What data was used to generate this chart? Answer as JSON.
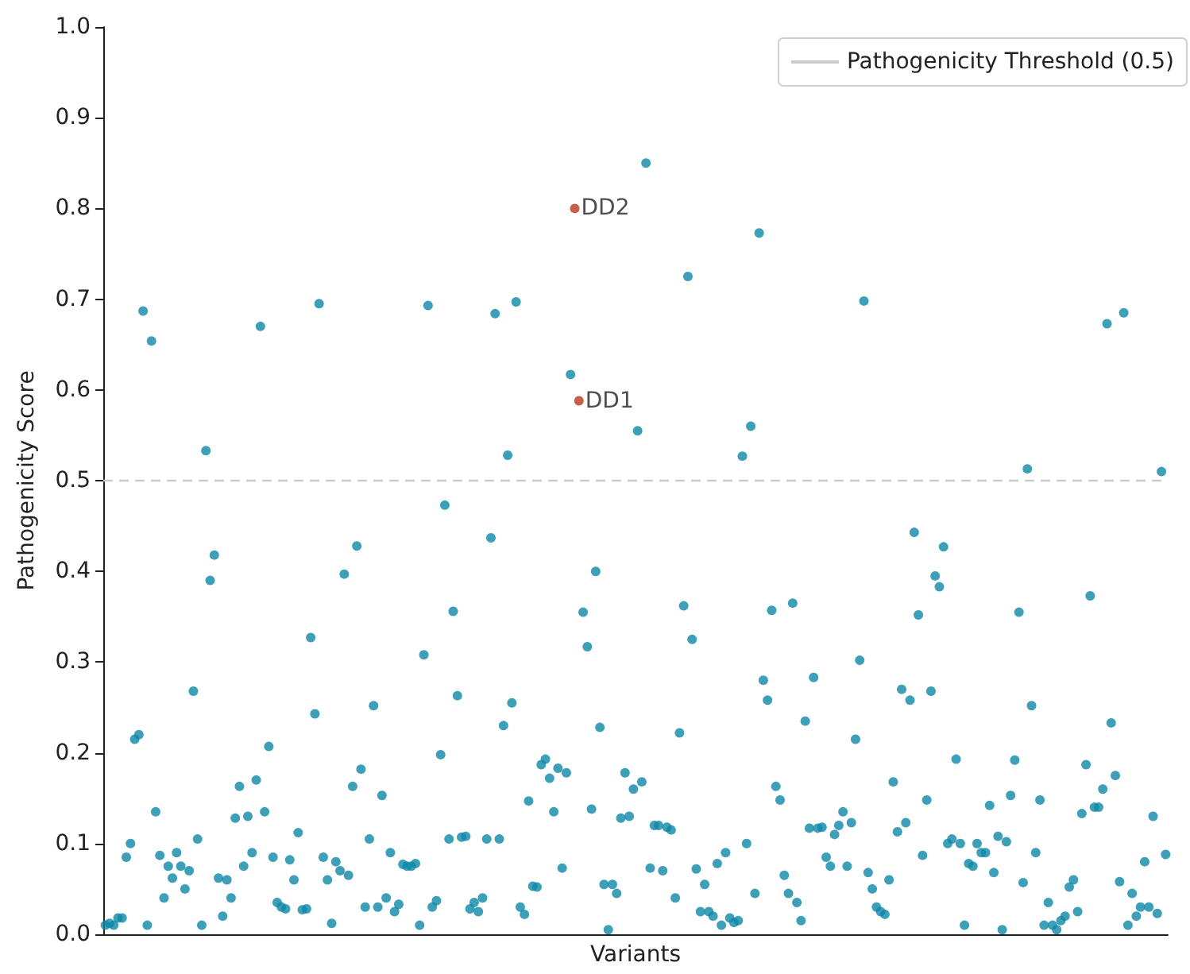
{
  "chart_data": {
    "type": "scatter",
    "xlabel": "Variants",
    "ylabel": "Pathogenicity Score",
    "categories": [
      null,
      null,
      null,
      null,
      null,
      null,
      null,
      null,
      null,
      null,
      null,
      null,
      null,
      null,
      null,
      null,
      null,
      null,
      null,
      null,
      null,
      null,
      null,
      null,
      null,
      null,
      null,
      null,
      null,
      null,
      null,
      null,
      null,
      null,
      null,
      null,
      null,
      null,
      null,
      null,
      null,
      null,
      null,
      null,
      null,
      null,
      null,
      null,
      null,
      null,
      null,
      null,
      null,
      null,
      null,
      null,
      null,
      null,
      null,
      null,
      null,
      null,
      null,
      null,
      null,
      null,
      null,
      null,
      null,
      null,
      null,
      null,
      null,
      null,
      null,
      null,
      null,
      null,
      null,
      null,
      null,
      null,
      null,
      null,
      null,
      null,
      null,
      null,
      null,
      null,
      null,
      null,
      null,
      null,
      null,
      null,
      null,
      null,
      null,
      null,
      null,
      null,
      null,
      null,
      null,
      null,
      null,
      null,
      null,
      null,
      null,
      null,
      null,
      null,
      null,
      null,
      null,
      null,
      null,
      null,
      null,
      null,
      null,
      null,
      null,
      null,
      null,
      null,
      null,
      null,
      null,
      null,
      null,
      null,
      null,
      null,
      null,
      null,
      null,
      null,
      null,
      null,
      null,
      null,
      null,
      null,
      null,
      null,
      null,
      null,
      null,
      null,
      null,
      null,
      null,
      null,
      null,
      null,
      null,
      null,
      null,
      null,
      null,
      null,
      null,
      null,
      null,
      null,
      null,
      null,
      null,
      null,
      null,
      null,
      null,
      null,
      null,
      null,
      null,
      null,
      null,
      null,
      null,
      null,
      null,
      null,
      null,
      null,
      null,
      null,
      null,
      null,
      null,
      null,
      null,
      null,
      null,
      null,
      null,
      null,
      null,
      null,
      null,
      null,
      null,
      null,
      null,
      null,
      null,
      null,
      null,
      null,
      null,
      null,
      null,
      null,
      null,
      null,
      null,
      null,
      null,
      null,
      null,
      null,
      null,
      null,
      null,
      null,
      null,
      null,
      null,
      null,
      null,
      null,
      null,
      null,
      null,
      null,
      null,
      null,
      null,
      null,
      null,
      null,
      null,
      null,
      null,
      null,
      null,
      null,
      null,
      null,
      null,
      null
    ],
    "series": [
      {
        "color": "#0e87a8",
        "values": [
          0.01,
          0.012,
          0.01,
          0.018,
          0.018,
          0.085,
          0.1,
          0.215,
          0.22,
          0.687,
          0.01,
          0.654,
          0.135,
          0.087,
          0.04,
          0.075,
          0.062,
          0.09,
          0.075,
          0.05,
          0.07,
          0.268,
          0.105,
          0.01,
          0.533,
          0.39,
          0.418,
          0.062,
          0.02,
          0.06,
          0.04,
          0.128,
          0.163,
          0.075,
          0.13,
          0.09,
          0.17,
          0.67,
          0.135,
          0.207,
          0.085,
          0.035,
          0.03,
          0.028,
          0.082,
          0.06,
          0.112,
          0.027,
          0.028,
          0.327,
          0.243,
          0.695,
          0.085,
          0.06,
          0.012,
          0.08,
          0.07,
          0.397,
          0.065,
          0.163,
          0.428,
          0.182,
          0.03,
          0.105,
          0.252,
          0.03,
          0.153,
          0.04,
          0.09,
          0.025,
          0.033,
          0.077,
          0.075,
          0.075,
          0.078,
          0.01,
          0.308,
          0.693,
          0.03,
          0.037,
          0.198,
          0.473,
          0.105,
          0.356,
          0.263,
          0.107,
          0.108,
          0.028,
          0.035,
          0.025,
          0.04,
          0.105,
          0.437,
          0.684,
          0.105,
          0.23,
          0.528,
          0.255,
          0.697,
          0.03,
          0.022,
          0.147,
          0.053,
          0.052,
          0.187,
          0.193,
          0.172,
          0.135,
          0.183,
          0.073,
          0.178,
          0.617,
          null,
          null,
          0.355,
          0.317,
          0.138,
          0.4,
          0.228,
          0.055,
          0.005,
          0.055,
          0.045,
          0.128,
          0.178,
          0.13,
          0.16,
          0.555,
          0.168,
          0.85,
          0.073,
          0.12,
          0.12,
          0.07,
          0.118,
          0.115,
          0.04,
          0.222,
          0.362,
          0.725,
          0.325,
          0.072,
          0.025,
          0.055,
          0.025,
          0.02,
          0.078,
          0.01,
          0.09,
          0.018,
          0.013,
          0.015,
          0.527,
          0.1,
          0.56,
          0.045,
          0.773,
          0.28,
          0.258,
          0.357,
          0.163,
          0.148,
          0.065,
          0.045,
          0.365,
          0.035,
          0.015,
          0.235,
          0.117,
          0.283,
          0.117,
          0.118,
          0.085,
          0.075,
          0.11,
          0.12,
          0.135,
          0.075,
          0.123,
          0.215,
          0.302,
          0.698,
          0.068,
          0.05,
          0.03,
          0.025,
          0.022,
          0.06,
          0.168,
          0.113,
          0.27,
          0.123,
          0.258,
          0.443,
          0.352,
          0.087,
          0.148,
          0.268,
          0.395,
          0.383,
          0.427,
          0.1,
          0.105,
          0.193,
          0.1,
          0.01,
          0.078,
          0.075,
          0.1,
          0.09,
          0.09,
          0.142,
          0.068,
          0.108,
          0.005,
          0.102,
          0.153,
          0.192,
          0.355,
          0.057,
          0.513,
          0.252,
          0.09,
          0.148,
          0.01,
          0.035,
          0.01,
          0.005,
          0.015,
          0.02,
          0.052,
          0.06,
          0.025,
          0.133,
          0.187,
          0.373,
          0.14,
          0.14,
          0.16,
          0.673,
          0.233,
          0.175,
          0.058,
          0.685,
          0.01,
          0.045,
          0.02,
          0.03,
          0.08,
          0.03,
          0.13,
          0.023,
          0.51,
          0.088
        ]
      },
      {
        "color": "#b5391a",
        "values": [
          null,
          null,
          null,
          null,
          null,
          null,
          null,
          null,
          null,
          null,
          null,
          null,
          null,
          null,
          null,
          null,
          null,
          null,
          null,
          null,
          null,
          null,
          null,
          null,
          null,
          null,
          null,
          null,
          null,
          null,
          null,
          null,
          null,
          null,
          null,
          null,
          null,
          null,
          null,
          null,
          null,
          null,
          null,
          null,
          null,
          null,
          null,
          null,
          null,
          null,
          null,
          null,
          null,
          null,
          null,
          null,
          null,
          null,
          null,
          null,
          null,
          null,
          null,
          null,
          null,
          null,
          null,
          null,
          null,
          null,
          null,
          null,
          null,
          null,
          null,
          null,
          null,
          null,
          null,
          null,
          null,
          null,
          null,
          null,
          null,
          null,
          null,
          null,
          null,
          null,
          null,
          null,
          null,
          null,
          null,
          null,
          null,
          null,
          null,
          null,
          null,
          null,
          null,
          null,
          null,
          null,
          null,
          null,
          null,
          null,
          null,
          null,
          0.8,
          0.588,
          null,
          null,
          null,
          null,
          null,
          null,
          null,
          null,
          null,
          null,
          null,
          null,
          null,
          null,
          null,
          null,
          null,
          null,
          null,
          null,
          null,
          null,
          null,
          null,
          null,
          null,
          null,
          null,
          null,
          null,
          null,
          null,
          null,
          null,
          null,
          null,
          null,
          null,
          null,
          null,
          null,
          null,
          null,
          null,
          null,
          null,
          null,
          null,
          null,
          null,
          null,
          null,
          null,
          null,
          null,
          null,
          null,
          null,
          null,
          null,
          null,
          null,
          null,
          null,
          null,
          null,
          null,
          null,
          null,
          null,
          null,
          null,
          null,
          null,
          null,
          null,
          null,
          null,
          null,
          null,
          null,
          null,
          null,
          null,
          null,
          null,
          null,
          null,
          null,
          null,
          null,
          null,
          null,
          null,
          null,
          null,
          null,
          null,
          null,
          null,
          null,
          null,
          null,
          null,
          null,
          null,
          null,
          null,
          null,
          null,
          null,
          null,
          null,
          null,
          null,
          null,
          null,
          null,
          null,
          null,
          null,
          null,
          null,
          null,
          null,
          null,
          null,
          null,
          null,
          null,
          null,
          null,
          null,
          null,
          null,
          null,
          null,
          null,
          null,
          null
        ],
        "value_labels": [
          null,
          null,
          null,
          null,
          null,
          null,
          null,
          null,
          null,
          null,
          null,
          null,
          null,
          null,
          null,
          null,
          null,
          null,
          null,
          null,
          null,
          null,
          null,
          null,
          null,
          null,
          null,
          null,
          null,
          null,
          null,
          null,
          null,
          null,
          null,
          null,
          null,
          null,
          null,
          null,
          null,
          null,
          null,
          null,
          null,
          null,
          null,
          null,
          null,
          null,
          null,
          null,
          null,
          null,
          null,
          null,
          null,
          null,
          null,
          null,
          null,
          null,
          null,
          null,
          null,
          null,
          null,
          null,
          null,
          null,
          null,
          null,
          null,
          null,
          null,
          null,
          null,
          null,
          null,
          null,
          null,
          null,
          null,
          null,
          null,
          null,
          null,
          null,
          null,
          null,
          null,
          null,
          null,
          null,
          null,
          null,
          null,
          null,
          null,
          null,
          null,
          null,
          null,
          null,
          null,
          null,
          null,
          null,
          null,
          null,
          null,
          null,
          "DD2",
          "DD1",
          null,
          null,
          null,
          null,
          null,
          null,
          null,
          null,
          null,
          null,
          null,
          null,
          null,
          null,
          null,
          null,
          null,
          null,
          null,
          null,
          null,
          null,
          null,
          null,
          null,
          null,
          null,
          null,
          null,
          null,
          null,
          null,
          null,
          null,
          null,
          null,
          null,
          null,
          null,
          null,
          null,
          null,
          null,
          null,
          null,
          null,
          null,
          null,
          null,
          null,
          null,
          null,
          null,
          null,
          null,
          null,
          null,
          null,
          null,
          null,
          null,
          null,
          null,
          null,
          null,
          null,
          null,
          null,
          null,
          null,
          null,
          null,
          null,
          null,
          null,
          null,
          null,
          null,
          null,
          null,
          null,
          null,
          null,
          null,
          null,
          null,
          null,
          null,
          null,
          null,
          null,
          null,
          null,
          null,
          null,
          null,
          null,
          null,
          null,
          null,
          null,
          null,
          null,
          null,
          null,
          null,
          null,
          null,
          null,
          null,
          null,
          null,
          null,
          null,
          null,
          null,
          null,
          null,
          null,
          null,
          null,
          null,
          null,
          null,
          null,
          null,
          null,
          null,
          null,
          null,
          null,
          null,
          null,
          null,
          null,
          null,
          null,
          null,
          null,
          null
        ]
      }
    ],
    "ylim": [
      0,
      1
    ],
    "yticks": [
      {
        "value": 0,
        "label": "0.0"
      },
      0.1,
      0.2,
      0.3,
      0.4,
      0.5,
      0.6,
      0.7,
      0.8,
      0.9,
      {
        "value": 1,
        "label": "1.0"
      }
    ],
    "ref_lines": [
      {
        "axis": "y",
        "value": 0.5,
        "label": "Pathogenicity Threshold (0.5)",
        "color": "#cccccc",
        "line_style": "dashed"
      }
    ],
    "legend": "top right",
    "grid": false,
    "marker": "circle",
    "tick_labels": "y"
  }
}
